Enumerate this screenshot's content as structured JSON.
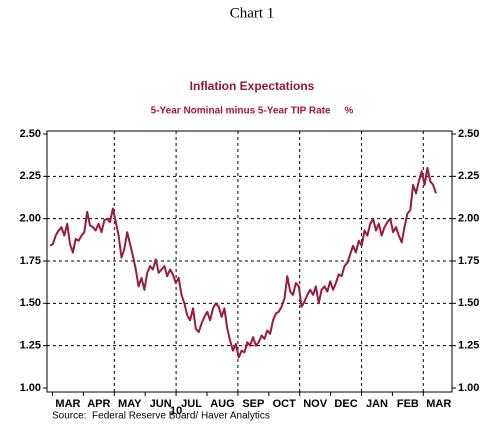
{
  "chart_data": {
    "type": "line",
    "header": "Chart 1",
    "title": "Inflation Expectations",
    "subtitle": "5-Year Nominal minus 5-Year TIP Rate     %",
    "source": "Source:  Federal Reserve Board/ Haver Analytics",
    "x_labels": [
      "MAR",
      "APR",
      "MAY",
      "JUN",
      "JUL",
      "AUG",
      "SEP",
      "OCT",
      "NOV",
      "DEC",
      "JAN",
      "FEB",
      "MAR"
    ],
    "year_label": "10",
    "ylim": [
      1.0,
      2.5
    ],
    "yticks": [
      {
        "value": 1,
        "label": "1.00"
      },
      {
        "value": 1.25,
        "label": "1.25"
      },
      {
        "value": 1.5,
        "label": "1.50"
      },
      {
        "value": 1.75,
        "label": "1.75"
      },
      {
        "value": 2,
        "label": "2.00"
      },
      {
        "value": 2.25,
        "label": "2.25"
      },
      {
        "value": 2.5,
        "label": "2.50"
      }
    ],
    "grid": true,
    "series": [
      {
        "name": "5-Year Nominal minus 5-Year TIP Rate",
        "color": "#9b1b3a",
        "values": [
          1.84,
          1.85,
          1.9,
          1.93,
          1.95,
          1.9,
          1.97,
          1.85,
          1.8,
          1.88,
          1.87,
          1.9,
          1.92,
          2.04,
          1.96,
          1.95,
          1.93,
          1.97,
          1.92,
          1.99,
          2.0,
          1.98,
          2.06,
          1.98,
          1.9,
          1.77,
          1.82,
          1.92,
          1.85,
          1.78,
          1.7,
          1.6,
          1.65,
          1.58,
          1.68,
          1.72,
          1.7,
          1.76,
          1.68,
          1.7,
          1.72,
          1.66,
          1.7,
          1.67,
          1.62,
          1.65,
          1.55,
          1.5,
          1.43,
          1.4,
          1.47,
          1.35,
          1.33,
          1.38,
          1.42,
          1.45,
          1.4,
          1.47,
          1.5,
          1.48,
          1.42,
          1.47,
          1.35,
          1.28,
          1.22,
          1.26,
          1.18,
          1.22,
          1.21,
          1.27,
          1.25,
          1.3,
          1.25,
          1.27,
          1.31,
          1.29,
          1.34,
          1.32,
          1.4,
          1.44,
          1.45,
          1.48,
          1.53,
          1.66,
          1.57,
          1.55,
          1.62,
          1.6,
          1.48,
          1.51,
          1.55,
          1.58,
          1.55,
          1.6,
          1.5,
          1.58,
          1.6,
          1.57,
          1.63,
          1.58,
          1.62,
          1.67,
          1.66,
          1.72,
          1.74,
          1.79,
          1.84,
          1.8,
          1.87,
          1.84,
          1.93,
          1.9,
          1.97,
          2.0,
          1.93,
          1.97,
          1.9,
          1.95,
          1.98,
          2.0,
          1.92,
          1.95,
          1.9,
          1.86,
          1.95,
          2.03,
          2.05,
          2.2,
          2.15,
          2.22,
          2.28,
          2.2,
          2.3,
          2.22,
          2.2,
          2.15
        ]
      }
    ]
  }
}
